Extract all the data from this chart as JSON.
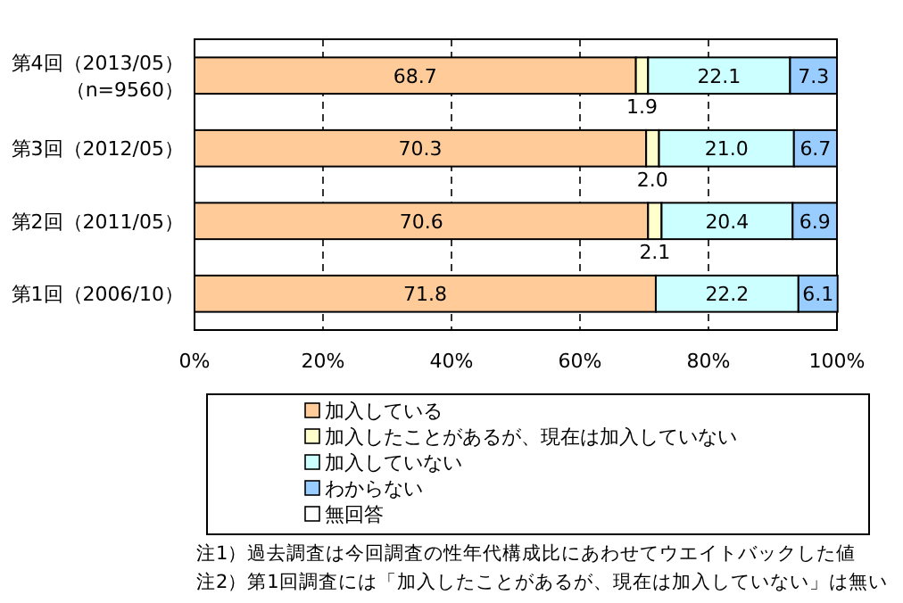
{
  "chart_data": {
    "type": "bar",
    "orientation": "horizontal",
    "stacked": true,
    "categories": [
      "第4回（2013/05）（n=9560）",
      "第3回（2012/05）",
      "第2回（2011/05）",
      "第1回（2006/10）"
    ],
    "series": [
      {
        "name": "加入している",
        "color": "#ffcc99",
        "values": [
          68.7,
          70.3,
          70.6,
          71.8
        ],
        "value_labels": [
          "68.7",
          "70.3",
          "70.6",
          "71.8"
        ]
      },
      {
        "name": "加入したことがあるが、現在は加入していない",
        "color": "#ffffcc",
        "values": [
          1.9,
          2.0,
          2.1,
          null
        ],
        "value_labels": [
          "1.9",
          "2.0",
          "2.1",
          null
        ]
      },
      {
        "name": "加入していない",
        "color": "#ccffff",
        "values": [
          22.1,
          21.0,
          20.4,
          22.2
        ],
        "value_labels": [
          "22.1",
          "21.0",
          "20.4",
          "22.2"
        ]
      },
      {
        "name": "わからない",
        "color": "#99ccff",
        "values": [
          7.3,
          6.7,
          6.9,
          6.1
        ],
        "value_labels": [
          "7.3",
          "6.7",
          "6.9",
          "6.1"
        ]
      },
      {
        "name": "無回答",
        "color": "#ffffff",
        "values": [
          null,
          null,
          null,
          null
        ]
      }
    ],
    "xlim": [
      0,
      100
    ],
    "xticks": [
      {
        "value": 0,
        "label": "0%"
      },
      {
        "value": 20,
        "label": "20%"
      },
      {
        "value": 40,
        "label": "40%"
      },
      {
        "value": 60,
        "label": "60%"
      },
      {
        "value": 80,
        "label": "80%"
      },
      {
        "value": 100,
        "label": "100%"
      }
    ],
    "grid": "x",
    "legend": "bottom",
    "annotations": [
      "注1）過去調査は今回調査の性年代構成比にあわせてウエイトバックした値",
      "注2）第1回調査には「加入したことがあるが、現在は加入していない」は無い"
    ]
  }
}
